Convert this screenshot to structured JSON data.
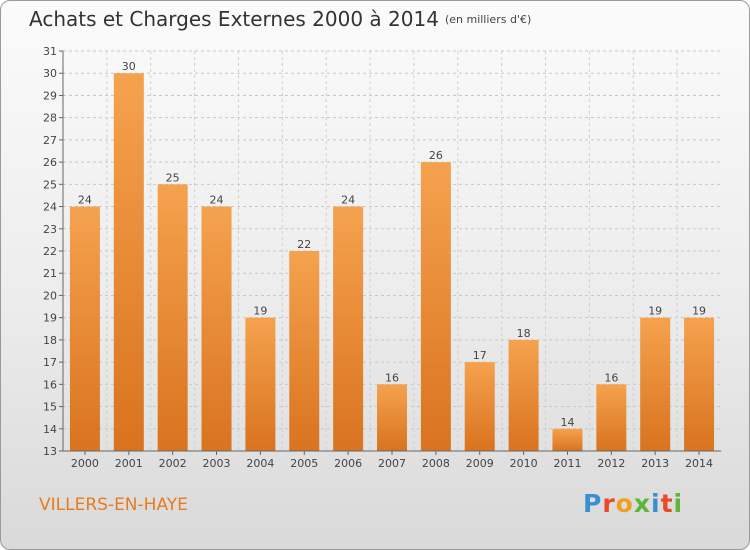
{
  "header": {
    "title": "Achats et Charges Externes 2000 à 2014",
    "unit": "(en milliers d'€)"
  },
  "footer": {
    "location": "VILLERS-EN-HAYE",
    "brand_letters": [
      "P",
      "r",
      "o",
      "x",
      "i",
      "t",
      "i"
    ],
    "brand_colors": [
      "#3a8fd0",
      "#e84a2a",
      "#f0a020",
      "#5fb53a",
      "#3a8fd0",
      "#e84a2a",
      "#5fb53a"
    ]
  },
  "colors": {
    "bar_top": "#f5a24e",
    "bar_bottom": "#d9731f",
    "location_text": "#e87b1e"
  },
  "chart_data": {
    "type": "bar",
    "categories": [
      "2000",
      "2001",
      "2002",
      "2003",
      "2004",
      "2005",
      "2006",
      "2007",
      "2008",
      "2009",
      "2010",
      "2011",
      "2012",
      "2013",
      "2014"
    ],
    "values": [
      24,
      30,
      25,
      24,
      19,
      22,
      24,
      16,
      26,
      17,
      18,
      14,
      16,
      19,
      19
    ],
    "title": "Achats et Charges Externes 2000 à 2014",
    "subtitle": "(en milliers d'€)",
    "xlabel": "",
    "ylabel": "",
    "ylim": [
      13,
      31
    ],
    "yticks": [
      13,
      14,
      15,
      16,
      17,
      18,
      19,
      20,
      21,
      22,
      23,
      24,
      25,
      26,
      27,
      28,
      29,
      30,
      31
    ],
    "grid": true,
    "data_labels": true
  }
}
